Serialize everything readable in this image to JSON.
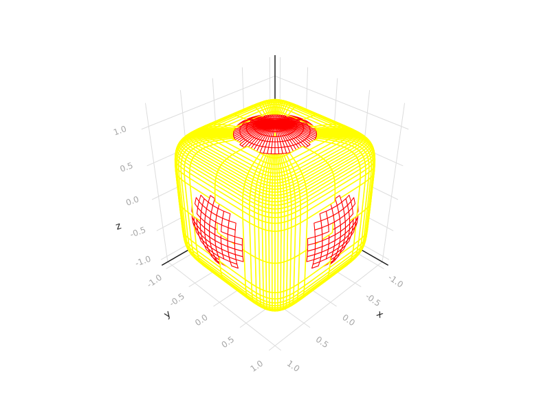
{
  "chart_data": {
    "type": "wireframe-3d",
    "xlabel": "x",
    "ylabel": "y",
    "zlabel": "z",
    "xlim": [
      -1.1,
      1.1
    ],
    "ylim": [
      -1.1,
      1.1
    ],
    "zlim": [
      -1.1,
      1.3
    ],
    "grid": true,
    "ticks": {
      "x": [
        -1.0,
        -0.5,
        0.0,
        0.5,
        1.0
      ],
      "y": [
        -1.0,
        -0.5,
        0.0,
        0.5,
        1.0
      ],
      "z": [
        -1.0,
        -0.5,
        0.0,
        0.5,
        1.0
      ]
    },
    "tick_labels": {
      "x": [
        "-1.0",
        "-0.5",
        "0.0",
        "0.5",
        "1.0"
      ],
      "y": [
        "-1.0",
        "-0.5",
        "0.0",
        "0.5",
        "1.0"
      ],
      "z": [
        "-1.0",
        "-0.5",
        "0.0",
        "0.5",
        "1.0"
      ]
    },
    "series": [
      {
        "color": "#ffff00"
      },
      {
        "color": "#ff0000"
      }
    ]
  },
  "colors": {
    "grid": "#dcdcdc",
    "spine": "#1a1a1a",
    "tick_text": "#a6a6a6"
  }
}
